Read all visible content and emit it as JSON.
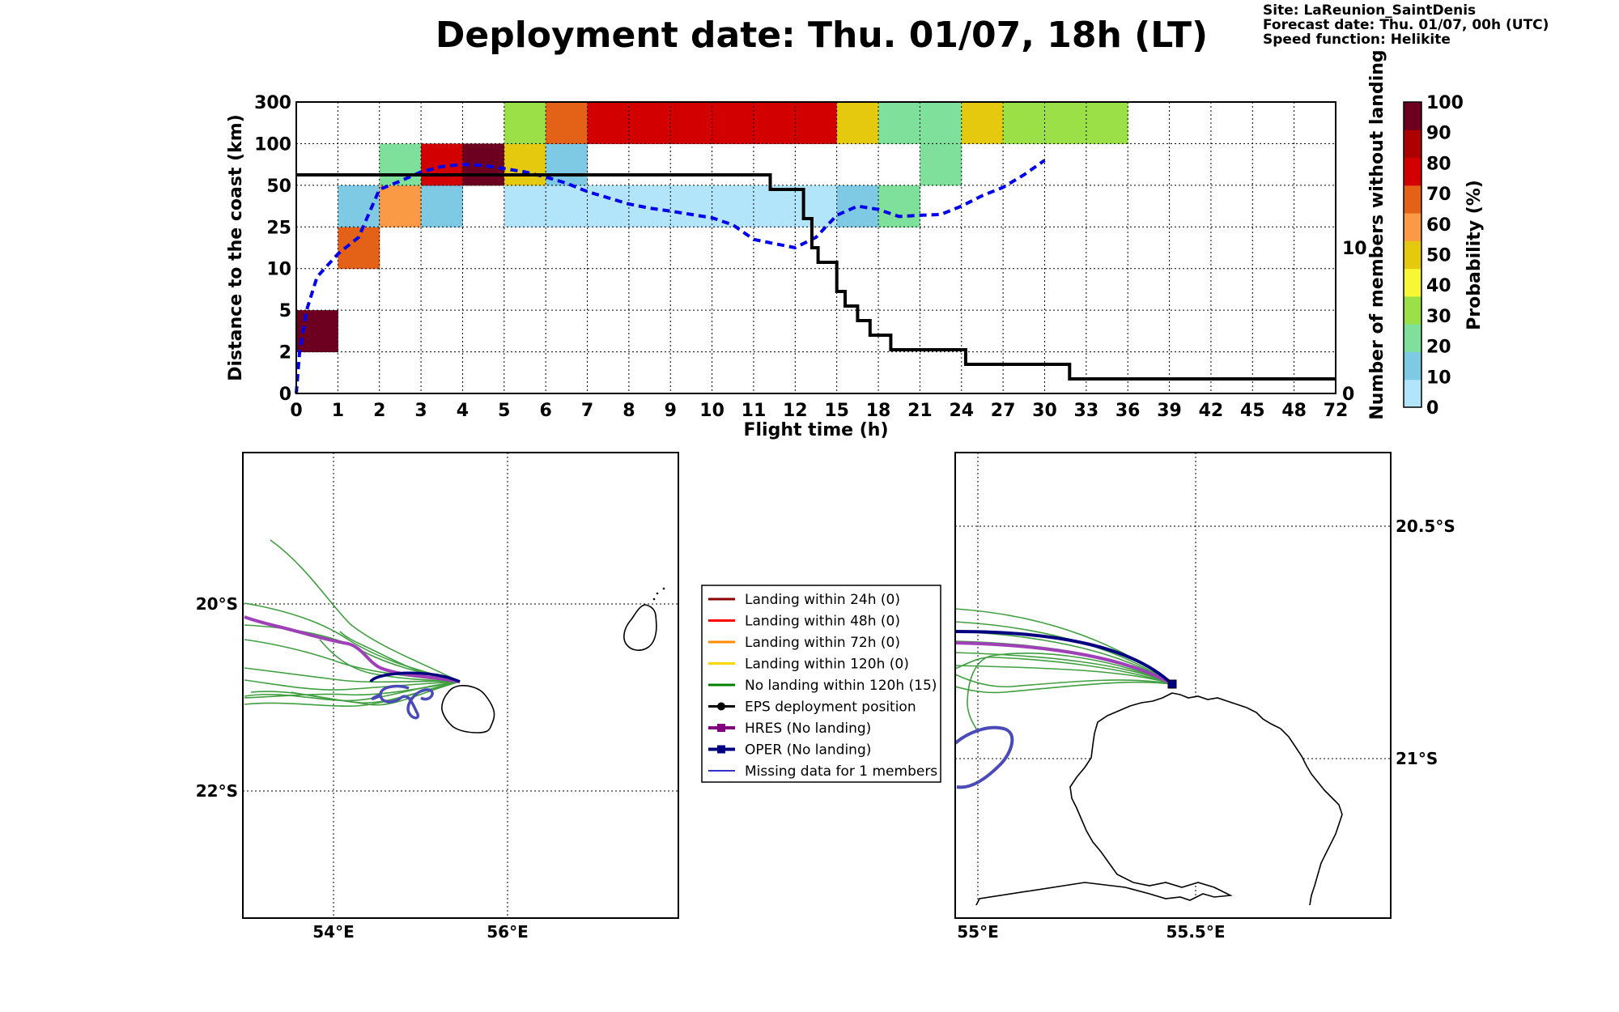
{
  "chart_data": [
    {
      "type": "heatmap",
      "title": "Deployment date: Thu. 01/07, 18h (LT)",
      "info_lines": [
        "Site: LaReunion_SaintDenis",
        "Forecast date: Thu. 01/07, 00h (UTC)",
        "Speed function: Helikite"
      ],
      "xlabel": "Flight time (h)",
      "ylabel": "Distance to the coast (km)",
      "y2label": "Number of members without landing",
      "x_ticks": [
        "0",
        "1",
        "2",
        "3",
        "4",
        "5",
        "6",
        "7",
        "8",
        "9",
        "10",
        "11",
        "12",
        "15",
        "18",
        "21",
        "24",
        "27",
        "30",
        "33",
        "36",
        "39",
        "42",
        "45",
        "48",
        "72"
      ],
      "y_ticks": [
        "0",
        "2",
        "5",
        "10",
        "25",
        "50",
        "100",
        "300"
      ],
      "y2_ticks": [
        {
          "v": 0,
          "label": "0"
        },
        {
          "v": 10,
          "label": "10"
        }
      ],
      "y2lim": [
        0,
        20
      ],
      "grid": true,
      "colorbar": {
        "label": "Probability (%)",
        "ticks": [
          "0",
          "10",
          "20",
          "30",
          "40",
          "50",
          "60",
          "70",
          "80",
          "90",
          "100"
        ],
        "colors": [
          "#b3e5fa",
          "#7ec9e4",
          "#7ee09a",
          "#9be046",
          "#f7f736",
          "#e4c90f",
          "#fa9a46",
          "#e46218",
          "#d20000",
          "#ad0000",
          "#6d0020"
        ]
      },
      "cells": [
        {
          "x": 0,
          "y": 1,
          "p": 100
        },
        {
          "x": 1,
          "y": 3,
          "p": 70
        },
        {
          "x": 1,
          "y": 4,
          "p": 10
        },
        {
          "x": 2,
          "y": 4,
          "p": 60
        },
        {
          "x": 2,
          "y": 5,
          "p": 20
        },
        {
          "x": 3,
          "y": 4,
          "p": 10
        },
        {
          "x": 3,
          "y": 5,
          "p": 80
        },
        {
          "x": 4,
          "y": 5,
          "p": 100
        },
        {
          "x": 5,
          "y": 4,
          "p": 0
        },
        {
          "x": 5,
          "y": 5,
          "p": 50
        },
        {
          "x": 5,
          "y": 6,
          "p": 30
        },
        {
          "x": 6,
          "y": 4,
          "p": 0
        },
        {
          "x": 6,
          "y": 5,
          "p": 10
        },
        {
          "x": 6,
          "y": 6,
          "p": 70
        },
        {
          "x": 7,
          "y": 4,
          "p": 0
        },
        {
          "x": 7,
          "y": 6,
          "p": 80
        },
        {
          "x": 8,
          "y": 4,
          "p": 0
        },
        {
          "x": 8,
          "y": 6,
          "p": 80
        },
        {
          "x": 9,
          "y": 4,
          "p": 0
        },
        {
          "x": 9,
          "y": 6,
          "p": 80
        },
        {
          "x": 10,
          "y": 4,
          "p": 0
        },
        {
          "x": 10,
          "y": 6,
          "p": 80
        },
        {
          "x": 11,
          "y": 4,
          "p": 0
        },
        {
          "x": 11,
          "y": 6,
          "p": 80
        },
        {
          "x": 12,
          "y": 4,
          "p": 0
        },
        {
          "x": 12,
          "y": 6,
          "p": 80
        },
        {
          "x": 13,
          "y": 4,
          "p": 10
        },
        {
          "x": 13,
          "y": 6,
          "p": 50
        },
        {
          "x": 14,
          "y": 4,
          "p": 20
        },
        {
          "x": 14,
          "y": 6,
          "p": 20
        },
        {
          "x": 15,
          "y": 5,
          "p": 20
        },
        {
          "x": 15,
          "y": 6,
          "p": 20
        },
        {
          "x": 16,
          "y": 6,
          "p": 50
        },
        {
          "x": 17,
          "y": 6,
          "p": 30
        },
        {
          "x": 18,
          "y": 6,
          "p": 30
        },
        {
          "x": 19,
          "y": 6,
          "p": 30
        }
      ],
      "series": [
        {
          "name": "",
          "style": "dashed",
          "color": "#0000ee",
          "axis": "left",
          "x_index": [
            0,
            0.08,
            0.25,
            0.5,
            1,
            1.5,
            2,
            2.5,
            3,
            3.5,
            4,
            4.5,
            5,
            5.5,
            6,
            6.5,
            7,
            7.5,
            8,
            8.5,
            9,
            9.5,
            10,
            10.5,
            11,
            11.5,
            12,
            12.5,
            13,
            13.5,
            14,
            14.5,
            15,
            15.5,
            16,
            16.5,
            17,
            17.5,
            18
          ],
          "y_index": [
            0,
            1.0,
            2.0,
            2.8,
            3.35,
            3.75,
            4.9,
            5.1,
            5.32,
            5.45,
            5.5,
            5.48,
            5.4,
            5.32,
            5.2,
            5.05,
            4.85,
            4.7,
            4.55,
            4.45,
            4.38,
            4.3,
            4.22,
            4.05,
            3.7,
            3.6,
            3.5,
            3.75,
            4.28,
            4.5,
            4.42,
            4.25,
            4.28,
            4.3,
            4.5,
            4.75,
            4.95,
            5.25,
            5.6
          ]
        },
        {
          "name": "",
          "style": "step",
          "color": "#000000",
          "axis": "right",
          "steps": [
            [
              0,
              15
            ],
            [
              11.4,
              15
            ],
            [
              11.4,
              14
            ],
            [
              12.2,
              14
            ],
            [
              12.2,
              12
            ],
            [
              12.4,
              12
            ],
            [
              12.4,
              10
            ],
            [
              12.55,
              10
            ],
            [
              12.55,
              9
            ],
            [
              13.0,
              9
            ],
            [
              13.0,
              7
            ],
            [
              13.2,
              7
            ],
            [
              13.2,
              6
            ],
            [
              13.5,
              6
            ],
            [
              13.5,
              5
            ],
            [
              13.8,
              5
            ],
            [
              13.8,
              4
            ],
            [
              14.3,
              4
            ],
            [
              14.3,
              3
            ],
            [
              16.1,
              3
            ],
            [
              16.1,
              2
            ],
            [
              18.6,
              2
            ],
            [
              18.6,
              1
            ],
            [
              25,
              1
            ]
          ]
        }
      ]
    },
    {
      "type": "map",
      "region": "overview",
      "x_ticks": [
        "54°E",
        "56°E"
      ],
      "y_ticks": [
        "20°S",
        "22°S"
      ],
      "grid": true
    },
    {
      "type": "map",
      "region": "zoom",
      "x_ticks": [
        "55°E",
        "55.5°E"
      ],
      "y_ticks": [
        "20.5°S",
        "21°S"
      ],
      "grid": true
    }
  ],
  "legend": [
    {
      "label": "Landing within 24h (0)",
      "color": "#8b0000",
      "marker": "none",
      "width": 2
    },
    {
      "label": "Landing within 48h (0)",
      "color": "#ff0000",
      "marker": "none",
      "width": 2
    },
    {
      "label": "Landing within 72h (0)",
      "color": "#ff8c00",
      "marker": "none",
      "width": 2
    },
    {
      "label": "Landing within 120h (0)",
      "color": "#ffd700",
      "marker": "none",
      "width": 2
    },
    {
      "label": "No landing within 120h (15)",
      "color": "#008000",
      "marker": "none",
      "width": 2
    },
    {
      "label": "EPS deployment position",
      "color": "#000000",
      "marker": "circle",
      "width": 2
    },
    {
      "label": "HRES (No landing)",
      "color": "#800080",
      "marker": "square",
      "width": 3
    },
    {
      "label": "OPER (No landing)",
      "color": "#000080",
      "marker": "square",
      "width": 3
    },
    {
      "label": "Missing data for 1 members",
      "color": "#3333cc",
      "marker": "none",
      "width": 1
    }
  ]
}
